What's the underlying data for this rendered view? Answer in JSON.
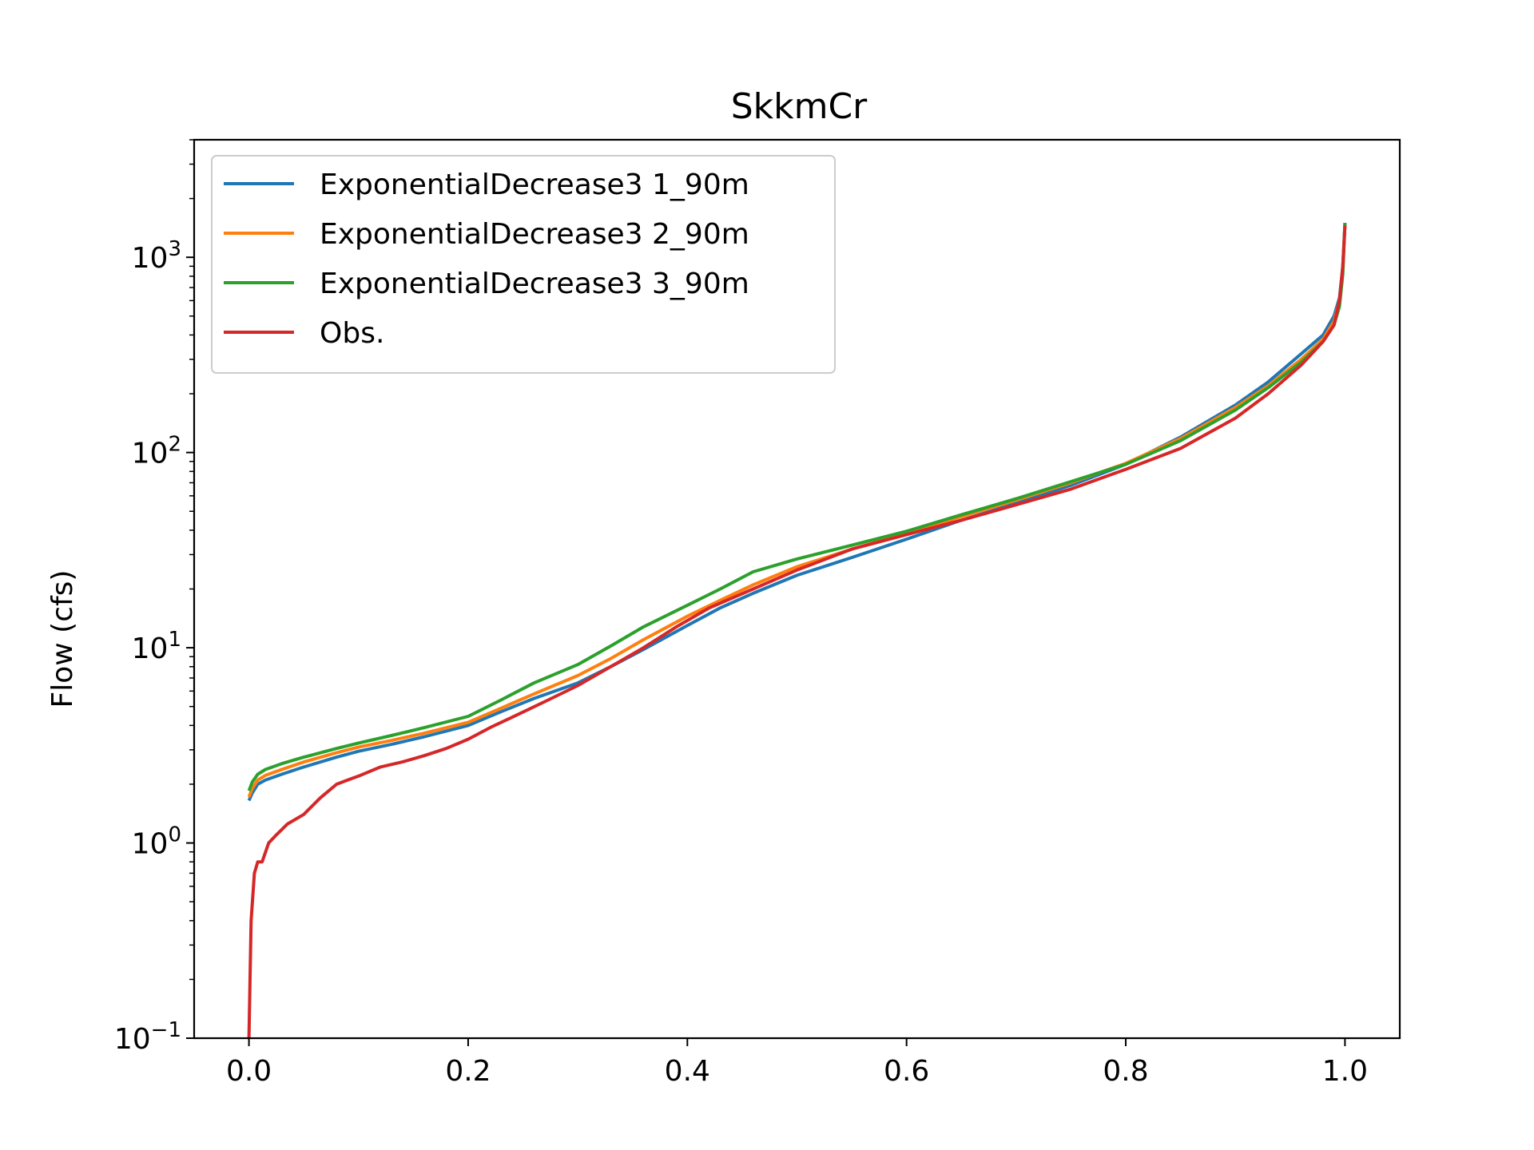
{
  "chart_data": {
    "type": "line",
    "title": "SkkmCr",
    "xlabel": "",
    "ylabel": "Flow (cfs)",
    "x_scale": "linear",
    "y_scale": "log",
    "xlim": [
      -0.05,
      1.05
    ],
    "ylim": [
      0.1,
      4000
    ],
    "x_ticks": [
      0.0,
      0.2,
      0.4,
      0.6,
      0.8,
      1.0
    ],
    "x_tick_labels": [
      "0.0",
      "0.2",
      "0.4",
      "0.6",
      "0.8",
      "1.0"
    ],
    "y_ticks": [
      0.1,
      1,
      10,
      100,
      1000
    ],
    "y_tick_labels": [
      {
        "base": "10",
        "exp": "−1"
      },
      {
        "base": "10",
        "exp": "0"
      },
      {
        "base": "10",
        "exp": "1"
      },
      {
        "base": "10",
        "exp": "2"
      },
      {
        "base": "10",
        "exp": "3"
      }
    ],
    "grid": false,
    "legend_position": "upper-left",
    "series": [
      {
        "name": "ExponentialDecrease3 1_90m",
        "color": "#1f77b4",
        "x": [
          0,
          0.003,
          0.008,
          0.015,
          0.03,
          0.05,
          0.08,
          0.1,
          0.13,
          0.16,
          0.2,
          0.23,
          0.26,
          0.3,
          0.33,
          0.36,
          0.4,
          0.43,
          0.46,
          0.5,
          0.55,
          0.6,
          0.65,
          0.7,
          0.75,
          0.8,
          0.85,
          0.9,
          0.93,
          0.96,
          0.98,
          0.99,
          0.995,
          0.998,
          1.0
        ],
        "y": [
          1.65,
          1.8,
          2.0,
          2.1,
          2.25,
          2.45,
          2.75,
          2.95,
          3.2,
          3.5,
          4.0,
          4.7,
          5.5,
          6.6,
          8.0,
          9.8,
          13.0,
          16.0,
          19.0,
          23.5,
          29.0,
          36.0,
          45.0,
          55.0,
          68.0,
          87.0,
          120.0,
          175.0,
          230.0,
          320.0,
          400.0,
          500.0,
          620.0,
          900.0,
          1500.0
        ]
      },
      {
        "name": "ExponentialDecrease3 2_90m",
        "color": "#ff7f0e",
        "x": [
          0,
          0.003,
          0.008,
          0.015,
          0.03,
          0.05,
          0.08,
          0.1,
          0.13,
          0.16,
          0.2,
          0.23,
          0.26,
          0.3,
          0.33,
          0.36,
          0.4,
          0.43,
          0.46,
          0.5,
          0.55,
          0.6,
          0.65,
          0.7,
          0.75,
          0.8,
          0.85,
          0.9,
          0.93,
          0.96,
          0.98,
          0.99,
          0.995,
          0.998,
          1.0
        ],
        "y": [
          1.72,
          1.9,
          2.1,
          2.22,
          2.38,
          2.6,
          2.9,
          3.1,
          3.35,
          3.65,
          4.15,
          4.9,
          5.8,
          7.2,
          8.8,
          11.0,
          14.5,
          17.5,
          21.0,
          26.0,
          32.0,
          38.5,
          47.0,
          57.0,
          70.0,
          88.0,
          118.0,
          170.0,
          220.0,
          300.0,
          380.0,
          470.0,
          600.0,
          880.0,
          1480.0
        ]
      },
      {
        "name": "ExponentialDecrease3 3_90m",
        "color": "#2ca02c",
        "x": [
          0,
          0.003,
          0.008,
          0.015,
          0.03,
          0.05,
          0.08,
          0.1,
          0.13,
          0.16,
          0.2,
          0.23,
          0.26,
          0.3,
          0.33,
          0.36,
          0.4,
          0.43,
          0.46,
          0.5,
          0.55,
          0.6,
          0.65,
          0.7,
          0.75,
          0.8,
          0.85,
          0.9,
          0.93,
          0.96,
          0.98,
          0.99,
          0.995,
          0.998,
          1.0
        ],
        "y": [
          1.85,
          2.05,
          2.25,
          2.38,
          2.55,
          2.75,
          3.05,
          3.25,
          3.55,
          3.9,
          4.45,
          5.4,
          6.6,
          8.2,
          10.2,
          12.8,
          16.5,
          20.0,
          24.5,
          28.5,
          33.5,
          39.5,
          48.0,
          58.0,
          71.0,
          87.0,
          115.0,
          165.0,
          215.0,
          290.0,
          370.0,
          450.0,
          560.0,
          820.0,
          1500.0
        ]
      },
      {
        "name": "Obs.",
        "color": "#d62728",
        "x": [
          0,
          0.002,
          0.005,
          0.008,
          0.012,
          0.018,
          0.025,
          0.035,
          0.05,
          0.065,
          0.08,
          0.09,
          0.1,
          0.12,
          0.14,
          0.16,
          0.18,
          0.2,
          0.22,
          0.24,
          0.27,
          0.3,
          0.33,
          0.36,
          0.39,
          0.42,
          0.46,
          0.5,
          0.55,
          0.6,
          0.65,
          0.7,
          0.75,
          0.8,
          0.85,
          0.9,
          0.93,
          0.96,
          0.98,
          0.99,
          0.995,
          0.998,
          1.0
        ],
        "y": [
          0.1,
          0.4,
          0.7,
          0.8,
          0.8,
          1.0,
          1.1,
          1.25,
          1.4,
          1.7,
          2.0,
          2.1,
          2.2,
          2.45,
          2.6,
          2.8,
          3.05,
          3.4,
          3.9,
          4.4,
          5.3,
          6.4,
          8.0,
          10.0,
          12.8,
          16.0,
          20.0,
          25.0,
          32.0,
          38.0,
          45.0,
          54.0,
          65.0,
          82.0,
          105.0,
          150.0,
          200.0,
          280.0,
          370.0,
          450.0,
          600.0,
          900.0,
          1450.0
        ]
      }
    ]
  }
}
